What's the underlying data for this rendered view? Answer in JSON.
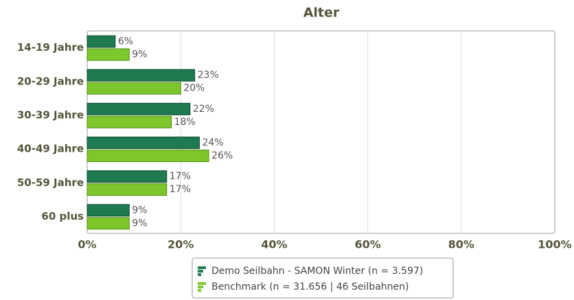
{
  "chart_data": {
    "type": "bar",
    "orientation": "horizontal",
    "title": "Alter",
    "categories": [
      "14-19 Jahre",
      "20-29 Jahre",
      "30-39 Jahre",
      "40-49 Jahre",
      "50-59 Jahre",
      "60 plus"
    ],
    "series": [
      {
        "name": "Demo Seilbahn - SAMON Winter (n = 3.597)",
        "color": "#1f7a4f",
        "values": [
          6,
          23,
          22,
          24,
          17,
          9
        ],
        "value_labels": [
          "6%",
          "23%",
          "22%",
          "24%",
          "17%",
          "9%"
        ]
      },
      {
        "name": "Benchmark (n = 31.656 | 46 Seilbahnen)",
        "color": "#7dc62c",
        "values": [
          9,
          20,
          18,
          26,
          17,
          9
        ],
        "value_labels": [
          "9%",
          "20%",
          "18%",
          "26%",
          "17%",
          "9%"
        ]
      }
    ],
    "xlim": [
      0,
      100
    ],
    "xticks": [
      {
        "value": 0,
        "label": "0%"
      },
      {
        "value": 20,
        "label": "20%"
      },
      {
        "value": 40,
        "label": "40%"
      },
      {
        "value": 60,
        "label": "60%"
      },
      {
        "value": 80,
        "label": "80%"
      },
      {
        "value": 100,
        "label": "100%"
      }
    ],
    "grid": true
  }
}
